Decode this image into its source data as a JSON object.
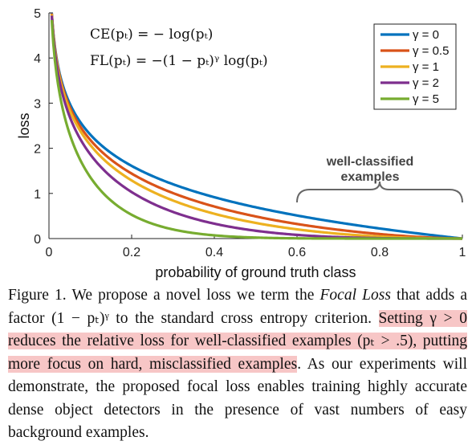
{
  "chart_data": {
    "type": "line",
    "xlabel": "probability of ground truth class",
    "ylabel": "loss",
    "xlim": [
      0,
      1
    ],
    "ylim": [
      0,
      5
    ],
    "x_ticks": [
      "0",
      "0.2",
      "0.4",
      "0.6",
      "0.8",
      "1"
    ],
    "y_ticks": [
      "0",
      "1",
      "2",
      "3",
      "4",
      "5"
    ],
    "formulas": [
      "CE(pₜ) = − log(pₜ)",
      "FL(pₜ) = −(1 − pₜ)ᵞ log(pₜ)"
    ],
    "legend_position": "top-right",
    "series": [
      {
        "name": "γ = 0",
        "gamma": 0,
        "color": "#0072BD"
      },
      {
        "name": "γ = 0.5",
        "gamma": 0.5,
        "color": "#D95319"
      },
      {
        "name": "γ = 1",
        "gamma": 1,
        "color": "#EDB120"
      },
      {
        "name": "γ = 2",
        "gamma": 2,
        "color": "#7E2F8E"
      },
      {
        "name": "γ = 5",
        "gamma": 5,
        "color": "#77AC30"
      }
    ],
    "x": [
      0.0067,
      0.01,
      0.02,
      0.03,
      0.05,
      0.075,
      0.1,
      0.15,
      0.2,
      0.25,
      0.3,
      0.35,
      0.4,
      0.45,
      0.5,
      0.55,
      0.6,
      0.65,
      0.7,
      0.75,
      0.8,
      0.85,
      0.9,
      0.95,
      1.0
    ],
    "annotation": [
      "well-classified",
      "examples"
    ],
    "annotation_range": [
      0.6,
      1.0
    ]
  },
  "caption": {
    "figure_label": "Figure 1.",
    "text1": " We propose a novel loss we term the ",
    "focal": "Focal Loss",
    "text2": " that adds a factor (1 − pₜ)ᵞ to the standard cross entropy criterion. ",
    "highlight": "Setting γ > 0 reduces the relative loss for well-classified examples (pₜ > .5), putting more focus on hard, misclassified examples",
    "text3": ". As our experiments will demonstrate, the proposed focal loss enables training highly accurate dense object detectors in the presence of vast numbers of easy background examples."
  }
}
